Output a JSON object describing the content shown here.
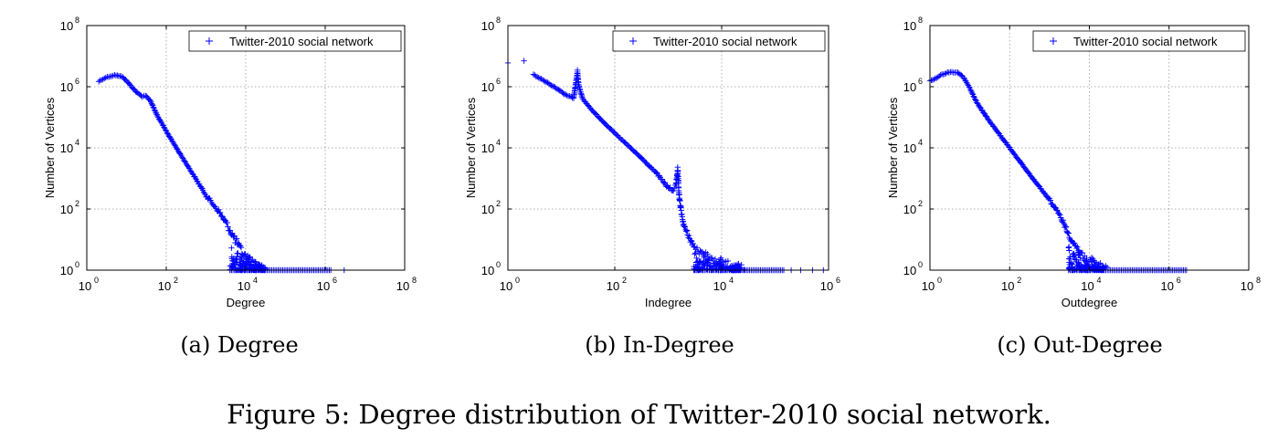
{
  "panels": [
    {
      "caption": "(a)  Degree",
      "chart_data": {
        "type": "scatter",
        "scale": "log-log",
        "xlabel": "Degree",
        "ylabel": "Number of Vertices",
        "xlim": [
          1,
          100000000
        ],
        "ylim": [
          1,
          100000000
        ],
        "x_ticks": [
          {
            "base": "10",
            "exp": "0",
            "v": 1
          },
          {
            "base": "10",
            "exp": "2",
            "v": 100
          },
          {
            "base": "10",
            "exp": "4",
            "v": 10000
          },
          {
            "base": "10",
            "exp": "6",
            "v": 1000000
          },
          {
            "base": "10",
            "exp": "8",
            "v": 100000000
          }
        ],
        "y_ticks": [
          {
            "base": "10",
            "exp": "0",
            "v": 1
          },
          {
            "base": "10",
            "exp": "2",
            "v": 100
          },
          {
            "base": "10",
            "exp": "4",
            "v": 10000
          },
          {
            "base": "10",
            "exp": "6",
            "v": 1000000
          },
          {
            "base": "10",
            "exp": "8",
            "v": 100000000
          }
        ],
        "grid": true,
        "legend_position": "top-right",
        "marker": "+",
        "color": "#0000ff",
        "series": [
          {
            "name": "Twitter-2010 social network",
            "curve": [
              [
                2,
                1500000
              ],
              [
                3,
                2000000
              ],
              [
                5,
                2400000
              ],
              [
                8,
                2100000
              ],
              [
                12,
                1200000
              ],
              [
                18,
                650000
              ],
              [
                25,
                480000
              ],
              [
                30,
                520000
              ],
              [
                40,
                350000
              ],
              [
                60,
                110000
              ],
              [
                100,
                35000
              ],
              [
                200,
                8000
              ],
              [
                500,
                1200
              ],
              [
                1000,
                280
              ],
              [
                2000,
                90
              ],
              [
                3000,
                40
              ],
              [
                5000,
                12
              ],
              [
                8000,
                4
              ],
              [
                12000,
                2
              ],
              [
                25000,
                1.2
              ]
            ],
            "tail_range": [
              4000,
              1500000
            ],
            "outliers": [
              3000000
            ]
          }
        ]
      }
    },
    {
      "caption": "(b)  In-Degree",
      "chart_data": {
        "type": "scatter",
        "scale": "log-log",
        "xlabel": "Indegree",
        "ylabel": "Number of Vertices",
        "xlim": [
          1,
          1000000
        ],
        "ylim": [
          1,
          100000000
        ],
        "x_ticks": [
          {
            "base": "10",
            "exp": "0",
            "v": 1
          },
          {
            "base": "10",
            "exp": "2",
            "v": 100
          },
          {
            "base": "10",
            "exp": "4",
            "v": 10000
          },
          {
            "base": "10",
            "exp": "6",
            "v": 1000000
          }
        ],
        "y_ticks": [
          {
            "base": "10",
            "exp": "0",
            "v": 1
          },
          {
            "base": "10",
            "exp": "2",
            "v": 100
          },
          {
            "base": "10",
            "exp": "4",
            "v": 10000
          },
          {
            "base": "10",
            "exp": "6",
            "v": 1000000
          },
          {
            "base": "10",
            "exp": "8",
            "v": 100000000
          }
        ],
        "grid": true,
        "legend_position": "top-right",
        "marker": "+",
        "color": "#0000ff",
        "series": [
          {
            "name": "Twitter-2010 social network",
            "curve": [
              [
                3,
                2500000
              ],
              [
                5,
                1500000
              ],
              [
                8,
                900000
              ],
              [
                12,
                550000
              ],
              [
                17,
                420000
              ],
              [
                20,
                3000000
              ],
              [
                21,
                1200000
              ],
              [
                25,
                400000
              ],
              [
                40,
                150000
              ],
              [
                100,
                30000
              ],
              [
                300,
                5000
              ],
              [
                600,
                1500
              ],
              [
                800,
                800
              ],
              [
                1000,
                500
              ],
              [
                1200,
                400
              ],
              [
                1400,
                600
              ],
              [
                1500,
                2000
              ],
              [
                1600,
                250
              ],
              [
                1800,
                60
              ],
              [
                2000,
                25
              ],
              [
                3000,
                6
              ],
              [
                5000,
                2.5
              ],
              [
                10000,
                1.5
              ],
              [
                30000,
                1.1
              ]
            ],
            "tail_range": [
              3000,
              150000
            ],
            "outliers": [
              200000,
              300000,
              500000,
              800000
            ],
            "extra_points": [
              [
                1,
                6000000
              ],
              [
                2,
                7000000
              ],
              [
                20,
                3500000
              ]
            ]
          }
        ]
      }
    },
    {
      "caption": "(c)  Out-Degree",
      "chart_data": {
        "type": "scatter",
        "scale": "log-log",
        "xlabel": "Outdegree",
        "ylabel": "Number of Vertices",
        "xlim": [
          1,
          100000000
        ],
        "ylim": [
          1,
          100000000
        ],
        "x_ticks": [
          {
            "base": "10",
            "exp": "0",
            "v": 1
          },
          {
            "base": "10",
            "exp": "2",
            "v": 100
          },
          {
            "base": "10",
            "exp": "4",
            "v": 10000
          },
          {
            "base": "10",
            "exp": "6",
            "v": 1000000
          },
          {
            "base": "10",
            "exp": "8",
            "v": 100000000
          }
        ],
        "y_ticks": [
          {
            "base": "10",
            "exp": "0",
            "v": 1
          },
          {
            "base": "10",
            "exp": "2",
            "v": 100
          },
          {
            "base": "10",
            "exp": "4",
            "v": 10000
          },
          {
            "base": "10",
            "exp": "6",
            "v": 1000000
          },
          {
            "base": "10",
            "exp": "8",
            "v": 100000000
          }
        ],
        "grid": true,
        "legend_position": "top-right",
        "marker": "+",
        "color": "#0000ff",
        "series": [
          {
            "name": "Twitter-2010 social network",
            "curve": [
              [
                1,
                1500000
              ],
              [
                2,
                2500000
              ],
              [
                3,
                3000000
              ],
              [
                5,
                3000000
              ],
              [
                7,
                2000000
              ],
              [
                10,
                900000
              ],
              [
                15,
                300000
              ],
              [
                30,
                80000
              ],
              [
                100,
                10000
              ],
              [
                300,
                1500
              ],
              [
                1000,
                200
              ],
              [
                2000,
                50
              ],
              [
                3000,
                15
              ],
              [
                5000,
                5
              ],
              [
                8000,
                2.5
              ],
              [
                15000,
                1.5
              ],
              [
                30000,
                1.1
              ]
            ],
            "tail_range": [
              3000,
              3000000
            ],
            "outliers": []
          }
        ]
      }
    }
  ],
  "figure_caption": "Figure 5:  Degree distribution of Twitter-2010 social network."
}
